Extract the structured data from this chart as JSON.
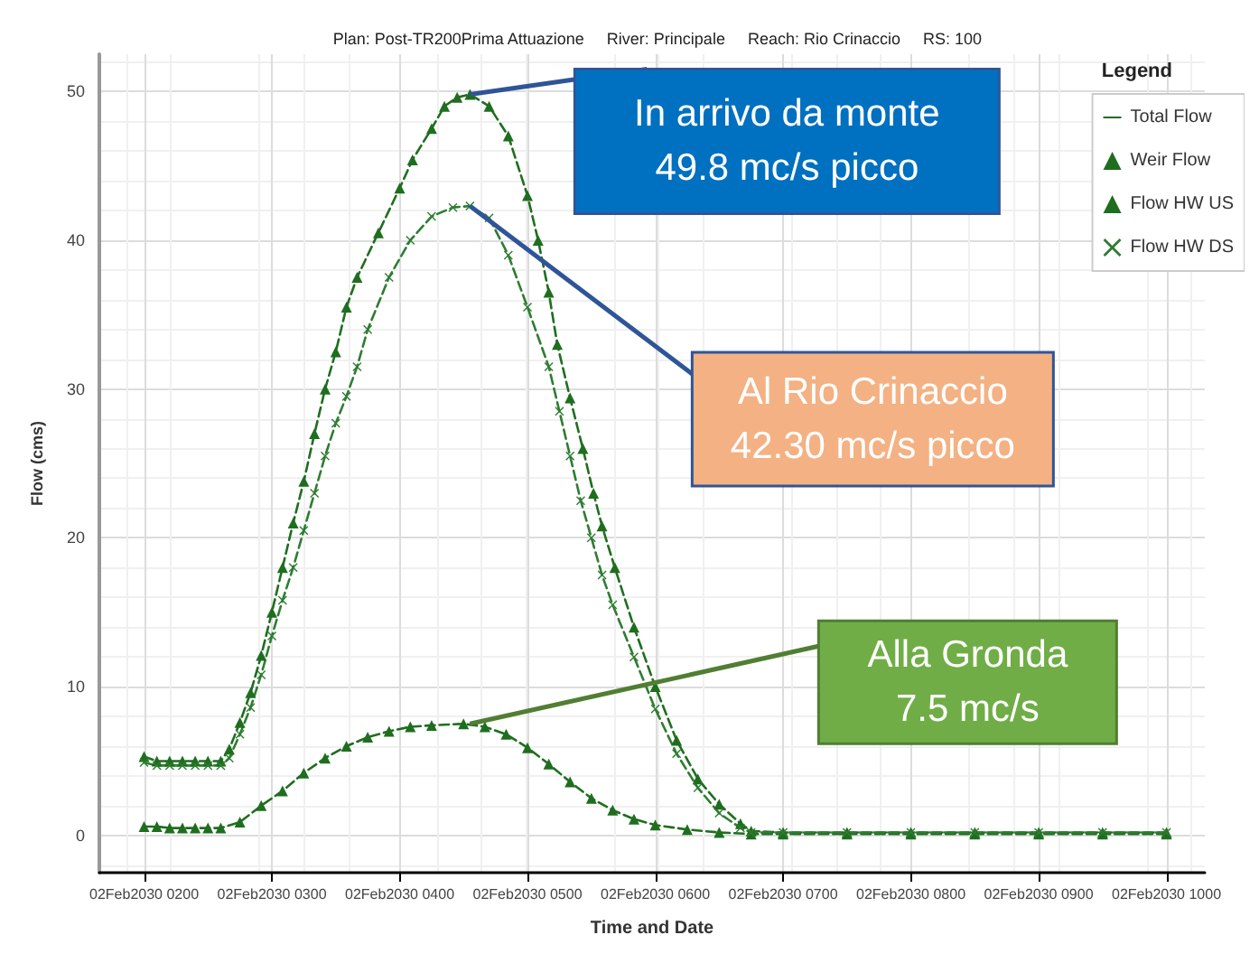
{
  "chart_data": {
    "type": "line",
    "subtitle": "Plan: Post-TR200Prima Attuazione     River: Principale     Reach: Rio Crinaccio     RS: 100",
    "xlabel": "Time and Date",
    "ylabel": "Flow (cms)",
    "legend_title": "Legend",
    "annotations": [
      {
        "text": "In arrivo da monte\n49.8 mc/s picco",
        "x": "2030-02-02T04:33",
        "y": 49.8
      },
      {
        "text": "Al Rio Crinaccio\n42.30 mc/s picco",
        "x": "2030-02-02T04:33",
        "y": 42.3
      },
      {
        "text": "Alla Gronda\n7.5 mc/s",
        "x": "2030-02-02T04:33",
        "y": 7.5
      }
    ],
    "xlim": [
      "2030-02-02T01:39",
      "2030-02-02T10:18"
    ],
    "ylim": [
      -2.5,
      52.5
    ],
    "xticks": [
      {
        "value": "2030-02-02T02:00",
        "label": "02Feb2030 0200"
      },
      {
        "value": "2030-02-02T03:00",
        "label": "02Feb2030 0300"
      },
      {
        "value": "2030-02-02T04:00",
        "label": "02Feb2030 0400"
      },
      {
        "value": "2030-02-02T05:00",
        "label": "02Feb2030 0500"
      },
      {
        "value": "2030-02-02T06:00",
        "label": "02Feb2030 0600"
      },
      {
        "value": "2030-02-02T07:00",
        "label": "02Feb2030 0700"
      },
      {
        "value": "2030-02-02T08:00",
        "label": "02Feb2030 0800"
      },
      {
        "value": "2030-02-02T09:00",
        "label": "02Feb2030 0900"
      },
      {
        "value": "2030-02-02T10:00",
        "label": "02Feb2030 1000"
      }
    ],
    "yticks": [
      0,
      10,
      20,
      30,
      40,
      50
    ],
    "grid": true,
    "legend": "top right",
    "line_style": "dashed",
    "series": [
      {
        "name": "Total Flow",
        "color": "#1f6e1f",
        "marker": "none"
      },
      {
        "name": "Weir Flow",
        "color": "#1f6e1f",
        "marker": "triangle",
        "x": [
          "2030-02-02T02:00",
          "2030-02-02T02:06",
          "2030-02-02T02:12",
          "2030-02-02T02:18",
          "2030-02-02T02:24",
          "2030-02-02T02:30",
          "2030-02-02T02:36",
          "2030-02-02T02:45",
          "2030-02-02T02:55",
          "2030-02-02T03:05",
          "2030-02-02T03:15",
          "2030-02-02T03:25",
          "2030-02-02T03:35",
          "2030-02-02T03:45",
          "2030-02-02T03:55",
          "2030-02-02T04:05",
          "2030-02-02T04:15",
          "2030-02-02T04:30",
          "2030-02-02T04:40",
          "2030-02-02T04:50",
          "2030-02-02T05:00",
          "2030-02-02T05:10",
          "2030-02-02T05:20",
          "2030-02-02T05:30",
          "2030-02-02T05:40",
          "2030-02-02T05:50",
          "2030-02-02T06:00",
          "2030-02-02T06:15",
          "2030-02-02T06:30",
          "2030-02-02T06:45",
          "2030-02-02T07:00",
          "2030-02-02T07:30",
          "2030-02-02T08:00",
          "2030-02-02T08:30",
          "2030-02-02T09:00",
          "2030-02-02T09:30",
          "2030-02-02T10:00"
        ],
        "values": [
          0.6,
          0.6,
          0.5,
          0.5,
          0.5,
          0.5,
          0.5,
          0.9,
          2.0,
          3.0,
          4.2,
          5.2,
          6.0,
          6.6,
          7.0,
          7.3,
          7.4,
          7.5,
          7.3,
          6.8,
          5.9,
          4.8,
          3.6,
          2.5,
          1.7,
          1.1,
          0.7,
          0.4,
          0.2,
          0.1,
          0.1,
          0.1,
          0.1,
          0.1,
          0.1,
          0.1,
          0.1
        ]
      },
      {
        "name": "Flow HW US",
        "color": "#1f6e1f",
        "marker": "triangle",
        "x": [
          "2030-02-02T02:00",
          "2030-02-02T02:06",
          "2030-02-02T02:12",
          "2030-02-02T02:18",
          "2030-02-02T02:24",
          "2030-02-02T02:30",
          "2030-02-02T02:36",
          "2030-02-02T02:40",
          "2030-02-02T02:45",
          "2030-02-02T02:50",
          "2030-02-02T02:55",
          "2030-02-02T03:00",
          "2030-02-02T03:05",
          "2030-02-02T03:10",
          "2030-02-02T03:15",
          "2030-02-02T03:20",
          "2030-02-02T03:25",
          "2030-02-02T03:30",
          "2030-02-02T03:35",
          "2030-02-02T03:40",
          "2030-02-02T03:50",
          "2030-02-02T04:00",
          "2030-02-02T04:06",
          "2030-02-02T04:15",
          "2030-02-02T04:21",
          "2030-02-02T04:27",
          "2030-02-02T04:33",
          "2030-02-02T04:42",
          "2030-02-02T04:51",
          "2030-02-02T05:00",
          "2030-02-02T05:05",
          "2030-02-02T05:10",
          "2030-02-02T05:14",
          "2030-02-02T05:20",
          "2030-02-02T05:26",
          "2030-02-02T05:31",
          "2030-02-02T05:35",
          "2030-02-02T05:41",
          "2030-02-02T05:50",
          "2030-02-02T06:00",
          "2030-02-02T06:10",
          "2030-02-02T06:20",
          "2030-02-02T06:30",
          "2030-02-02T06:40",
          "2030-02-02T06:45",
          "2030-02-02T07:00",
          "2030-02-02T07:30",
          "2030-02-02T08:00",
          "2030-02-02T08:30",
          "2030-02-02T09:00",
          "2030-02-02T09:30",
          "2030-02-02T10:00"
        ],
        "values": [
          5.3,
          5.0,
          5.0,
          5.0,
          5.0,
          5.0,
          5.0,
          5.8,
          7.6,
          9.6,
          12.1,
          15.0,
          18.0,
          21.0,
          23.8,
          27.0,
          30.0,
          32.5,
          35.5,
          37.5,
          40.5,
          43.5,
          45.4,
          47.5,
          49.0,
          49.6,
          49.8,
          49.0,
          47.0,
          43.0,
          40.0,
          36.5,
          33.0,
          29.4,
          26.0,
          23.0,
          20.8,
          18.0,
          14.0,
          10.0,
          6.4,
          3.8,
          2.1,
          0.8,
          0.3,
          0.2,
          0.2,
          0.2,
          0.2,
          0.2,
          0.2,
          0.2
        ]
      },
      {
        "name": "Flow HW DS",
        "color": "#2e7d32",
        "marker": "cross",
        "x": [
          "2030-02-02T02:00",
          "2030-02-02T02:06",
          "2030-02-02T02:12",
          "2030-02-02T02:18",
          "2030-02-02T02:24",
          "2030-02-02T02:30",
          "2030-02-02T02:36",
          "2030-02-02T02:40",
          "2030-02-02T02:45",
          "2030-02-02T02:50",
          "2030-02-02T02:55",
          "2030-02-02T03:00",
          "2030-02-02T03:05",
          "2030-02-02T03:10",
          "2030-02-02T03:15",
          "2030-02-02T03:20",
          "2030-02-02T03:25",
          "2030-02-02T03:30",
          "2030-02-02T03:35",
          "2030-02-02T03:40",
          "2030-02-02T03:45",
          "2030-02-02T03:55",
          "2030-02-02T04:05",
          "2030-02-02T04:15",
          "2030-02-02T04:25",
          "2030-02-02T04:33",
          "2030-02-02T04:42",
          "2030-02-02T04:51",
          "2030-02-02T05:00",
          "2030-02-02T05:10",
          "2030-02-02T05:15",
          "2030-02-02T05:20",
          "2030-02-02T05:25",
          "2030-02-02T05:30",
          "2030-02-02T05:35",
          "2030-02-02T05:40",
          "2030-02-02T05:50",
          "2030-02-02T06:00",
          "2030-02-02T06:10",
          "2030-02-02T06:20",
          "2030-02-02T06:30",
          "2030-02-02T06:40",
          "2030-02-02T06:45",
          "2030-02-02T07:00",
          "2030-02-02T07:30",
          "2030-02-02T08:00",
          "2030-02-02T08:30",
          "2030-02-02T09:00",
          "2030-02-02T09:30",
          "2030-02-02T10:00"
        ],
        "values": [
          4.9,
          4.7,
          4.7,
          4.7,
          4.7,
          4.7,
          4.7,
          5.2,
          6.8,
          8.6,
          10.8,
          13.4,
          15.8,
          18.0,
          20.5,
          23.0,
          25.5,
          27.7,
          29.5,
          31.5,
          34.0,
          37.5,
          40.0,
          41.6,
          42.2,
          42.3,
          41.5,
          39.0,
          35.5,
          31.5,
          28.5,
          25.5,
          22.5,
          20.0,
          17.5,
          15.5,
          12.0,
          8.5,
          5.5,
          3.2,
          1.5,
          0.5,
          0.2,
          0.2,
          0.2,
          0.2,
          0.2,
          0.2,
          0.2,
          0.2
        ]
      }
    ]
  }
}
